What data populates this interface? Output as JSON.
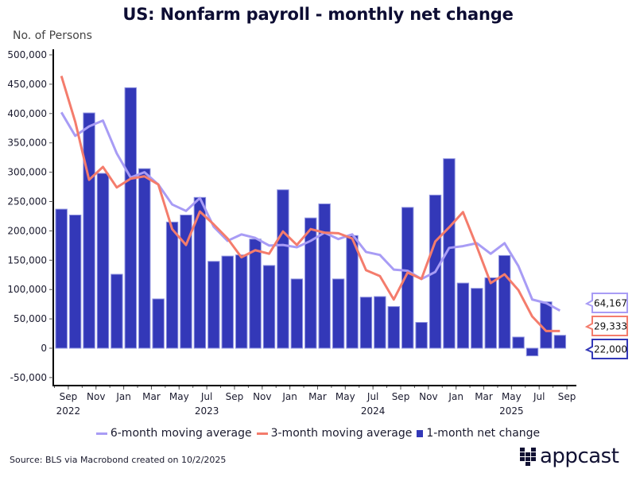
{
  "chart_data": {
    "type": "bar",
    "title": "US: Nonfarm payroll - monthly net change",
    "ylabel": "No. of Persons",
    "xlabel": "",
    "ylim": [
      -75000,
      510000
    ],
    "yticks": [
      -50000,
      0,
      50000,
      100000,
      150000,
      200000,
      250000,
      300000,
      350000,
      400000,
      450000,
      500000
    ],
    "ytick_labels": [
      "-50,000",
      "0",
      "50,000",
      "100,000",
      "150,000",
      "200,000",
      "250,000",
      "300,000",
      "350,000",
      "400,000",
      "450,000",
      "500,000"
    ],
    "grid": false,
    "legend_position": "bottom",
    "categories": [
      "2022-08",
      "2022-09",
      "2022-10",
      "2022-11",
      "2022-12",
      "2023-01",
      "2023-02",
      "2023-03",
      "2023-04",
      "2023-05",
      "2023-06",
      "2023-07",
      "2023-08",
      "2023-09",
      "2023-10",
      "2023-11",
      "2023-12",
      "2024-01",
      "2024-02",
      "2024-03",
      "2024-04",
      "2024-05",
      "2024-06",
      "2024-07",
      "2024-08",
      "2024-09",
      "2024-10",
      "2024-11",
      "2024-12",
      "2025-01",
      "2025-02",
      "2025-03",
      "2025-04",
      "2025-05",
      "2025-06",
      "2025-07",
      "2025-08"
    ],
    "x_tick_labels": [
      {
        "month": "Sep",
        "year": "2022",
        "index": 1
      },
      {
        "month": "Nov",
        "year": "",
        "index": 3
      },
      {
        "month": "Jan",
        "year": "",
        "index": 5
      },
      {
        "month": "Mar",
        "year": "",
        "index": 7
      },
      {
        "month": "May",
        "year": "",
        "index": 9
      },
      {
        "month": "Jul",
        "year": "2023",
        "index": 11
      },
      {
        "month": "Sep",
        "year": "",
        "index": 13
      },
      {
        "month": "Nov",
        "year": "",
        "index": 15
      },
      {
        "month": "Jan",
        "year": "",
        "index": 17
      },
      {
        "month": "Mar",
        "year": "",
        "index": 19
      },
      {
        "month": "May",
        "year": "",
        "index": 21
      },
      {
        "month": "Jul",
        "year": "2024",
        "index": 23
      },
      {
        "month": "Sep",
        "year": "",
        "index": 25
      },
      {
        "month": "Nov",
        "year": "",
        "index": 27
      },
      {
        "month": "Jan",
        "year": "",
        "index": 29
      },
      {
        "month": "Mar",
        "year": "",
        "index": 31
      },
      {
        "month": "May",
        "year": "2025",
        "index": 33
      },
      {
        "month": "Jul",
        "year": "",
        "index": 35
      },
      {
        "month": "Sep",
        "year": "",
        "index": 37
      }
    ],
    "series": [
      {
        "name": "6-month moving average",
        "kind": "line",
        "color": "#a89cf5",
        "values": [
          402000,
          362000,
          378000,
          388000,
          332000,
          291000,
          300000,
          279000,
          245000,
          234000,
          256000,
          207000,
          183000,
          194000,
          188000,
          175000,
          176000,
          172000,
          183000,
          197000,
          186000,
          194000,
          164000,
          159000,
          134000,
          132000,
          118000,
          130000,
          171000,
          174000,
          179000,
          161000,
          179000,
          140000,
          83000,
          77000,
          64167
        ],
        "last_value_label": "64,167"
      },
      {
        "name": "3-month moving average",
        "kind": "line",
        "color": "#f47c6c",
        "values": [
          464000,
          386000,
          287000,
          309000,
          274000,
          289000,
          293000,
          279000,
          203000,
          176000,
          233000,
          211000,
          187000,
          155000,
          167000,
          161000,
          199000,
          176000,
          203000,
          197000,
          196000,
          187000,
          133000,
          123000,
          83000,
          129000,
          118000,
          182000,
          206000,
          232000,
          173000,
          111000,
          126000,
          99000,
          54000,
          29333,
          29333
        ],
        "last_value_label": "29,333"
      },
      {
        "name": "1-month net change",
        "kind": "bar",
        "color": "#3338b8",
        "values": [
          237000,
          227000,
          401000,
          298000,
          126000,
          444000,
          306000,
          84000,
          215000,
          227000,
          257000,
          148000,
          157000,
          159000,
          186000,
          141000,
          270000,
          118000,
          222000,
          246000,
          118000,
          192000,
          87000,
          88000,
          71000,
          240000,
          44000,
          261000,
          323000,
          111000,
          102000,
          120000,
          158000,
          19000,
          -13000,
          79000,
          22000
        ],
        "last_value_label": "22,000"
      }
    ]
  },
  "legend": [
    {
      "label": "6-month moving average",
      "color": "#a89cf5",
      "shape": "line"
    },
    {
      "label": "3-month moving average",
      "color": "#f47c6c",
      "shape": "line"
    },
    {
      "label": "1-month net change",
      "color": "#3338b8",
      "shape": "box"
    }
  ],
  "source": "Source: BLS via Macrobond created on 10/2/2025",
  "logo": {
    "text": "appcast",
    "icon": "appcast-grid-icon"
  }
}
